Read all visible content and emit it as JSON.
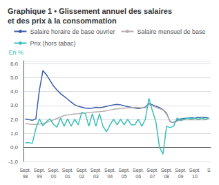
{
  "chart_data": {
    "type": "line",
    "title": "Graphique 1 • Glissement annuel des salaires\net des prix à la consommation",
    "y_label": "En %",
    "categories": [
      "Sept.\n98",
      null,
      null,
      null,
      "Sept.\n99",
      null,
      null,
      null,
      "Sept.\n00",
      null,
      null,
      null,
      "Sept.\n01",
      null,
      null,
      null,
      "Sept.\n02",
      null,
      null,
      null,
      "Sept.\n03",
      null,
      null,
      null,
      "Sept.\n04",
      null,
      null,
      null,
      "Sept.\n05",
      null,
      null,
      null,
      "Sept.\n06",
      null,
      null,
      null,
      "Sept.\n07",
      null,
      null,
      null,
      "Sept.\n08",
      null,
      null,
      null,
      "Sept.\n09",
      null,
      null,
      null,
      "Sept.\n10",
      null,
      null,
      null,
      "S"
    ],
    "series": [
      {
        "name": "Salaire horaire de base ouvrier",
        "color": "#3b5ea6",
        "values": [
          2.05,
          2.0,
          1.95,
          2.05,
          4.1,
          5.5,
          5.2,
          4.8,
          4.4,
          4.1,
          3.85,
          3.65,
          3.45,
          3.25,
          3.05,
          2.95,
          2.88,
          2.82,
          2.78,
          2.82,
          2.87,
          2.85,
          2.88,
          2.95,
          3.0,
          3.05,
          3.08,
          3.05,
          2.98,
          2.92,
          2.87,
          2.82,
          2.78,
          2.82,
          2.88,
          3.15,
          3.05,
          2.95,
          2.85,
          2.7,
          2.45,
          1.85,
          1.78,
          1.95,
          2.05,
          2.08,
          2.1,
          2.12,
          2.12,
          2.15,
          2.15,
          2.15,
          2.1
        ]
      },
      {
        "name": "Salaire mensuel de base",
        "color": "#b8aeae",
        "values": [
          1.72,
          1.68,
          1.65,
          1.65,
          1.68,
          1.72,
          1.78,
          1.88,
          1.98,
          2.08,
          2.18,
          2.28,
          2.33,
          2.37,
          2.4,
          2.42,
          2.45,
          2.47,
          2.5,
          2.52,
          2.54,
          2.56,
          2.59,
          2.63,
          2.68,
          2.73,
          2.76,
          2.79,
          2.81,
          2.83,
          2.85,
          2.87,
          2.86,
          2.84,
          2.83,
          3.08,
          2.98,
          2.88,
          2.78,
          2.68,
          2.38,
          1.88,
          1.78,
          1.88,
          1.98,
          1.98,
          1.98,
          1.98,
          1.98,
          1.98,
          1.98,
          1.98,
          2.08
        ]
      },
      {
        "name": "Prix (hors tabac)",
        "color": "#3bbfb8",
        "values": [
          0.35,
          0.35,
          0.3,
          1.35,
          2.05,
          1.55,
          1.85,
          2.05,
          1.65,
          1.45,
          2.12,
          1.52,
          2.05,
          1.52,
          2.02,
          1.62,
          2.52,
          2.42,
          1.52,
          2.42,
          1.52,
          2.42,
          1.52,
          1.12,
          1.62,
          2.02,
          1.62,
          2.02,
          1.62,
          2.02,
          1.62,
          1.62,
          2.02,
          1.52,
          2.02,
          3.52,
          2.62,
          1.82,
          0.02,
          -0.48,
          1.52,
          1.42,
          1.52,
          2.12,
          1.92,
          2.02,
          2.12,
          2.02,
          2.12,
          2.02,
          2.12,
          2.02,
          2.12
        ]
      }
    ],
    "ylim": [
      -1.0,
      6.2
    ],
    "yticks": [
      {
        "value": -1.0,
        "label": "-1,0"
      },
      {
        "value": 0.0,
        "label": "0,0"
      },
      {
        "value": 1.0,
        "label": "1,0"
      },
      {
        "value": 2.0,
        "label": "2,0"
      },
      {
        "value": 3.0,
        "label": "3,0"
      },
      {
        "value": 4.0,
        "label": "4,0"
      },
      {
        "value": 5.0,
        "label": "5,0"
      },
      {
        "value": 6.0,
        "label": "6,0"
      }
    ],
    "grid": true,
    "legend": "top"
  }
}
